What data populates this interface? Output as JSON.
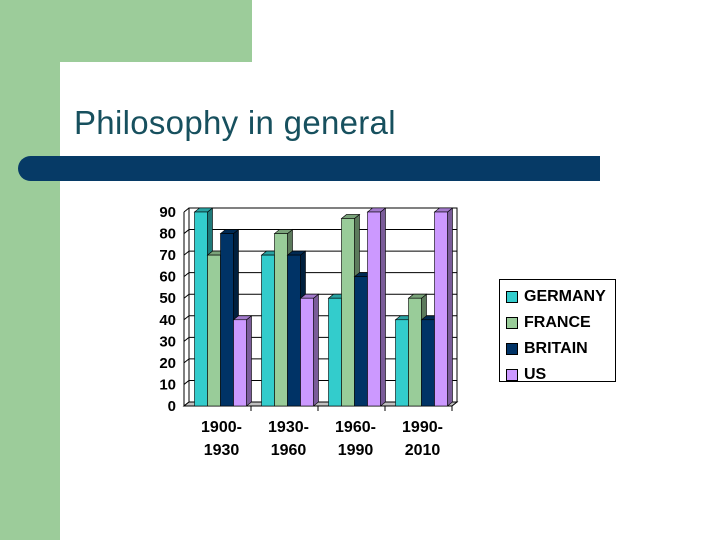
{
  "slide": {
    "title": "Philosophy in general"
  },
  "colors": {
    "accent_green": "#9ccc9a",
    "title_rule": "#063a66",
    "title_text": "#17505e"
  },
  "chart_data": {
    "type": "bar",
    "categories": [
      "1900-\n1930",
      "1930-\n1960",
      "1960-\n1990",
      "1990-\n2010"
    ],
    "series": [
      {
        "name": "GERMANY",
        "color": "#33cccc",
        "values": [
          90,
          70,
          50,
          40
        ]
      },
      {
        "name": "FRANCE",
        "color": "#99cc99",
        "values": [
          70,
          80,
          87,
          50
        ]
      },
      {
        "name": "BRITAIN",
        "color": "#003366",
        "values": [
          80,
          70,
          60,
          40
        ]
      },
      {
        "name": "US",
        "color": "#cc99ff",
        "values": [
          40,
          50,
          90,
          90
        ]
      }
    ],
    "title": "",
    "xlabel": "",
    "ylabel": "",
    "ylim": [
      0,
      90
    ],
    "yticks": [
      0,
      10,
      20,
      30,
      40,
      50,
      60,
      70,
      80,
      90
    ],
    "grid": true,
    "legend_position": "right"
  }
}
